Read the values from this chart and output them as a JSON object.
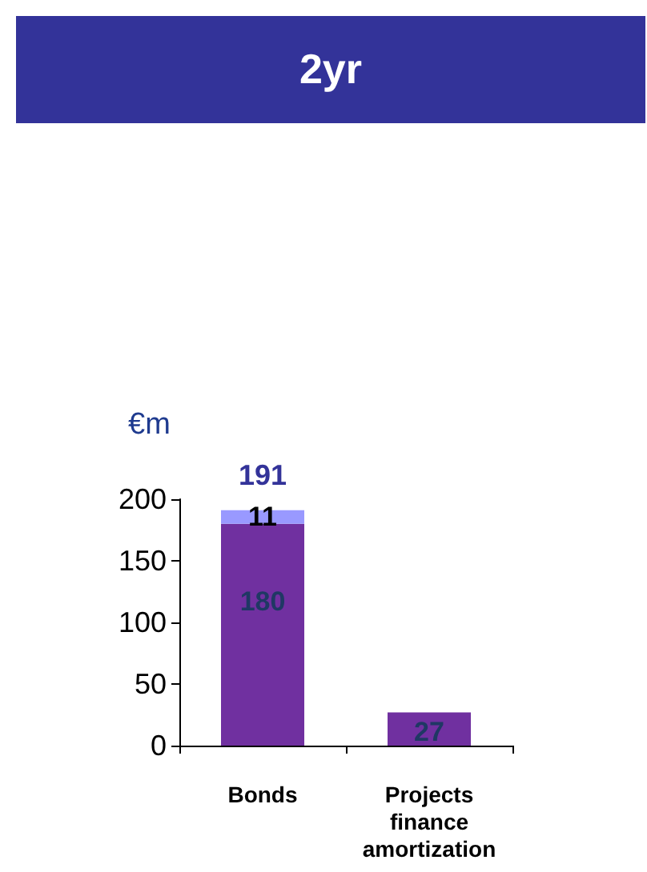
{
  "chart_data": {
    "type": "bar",
    "title": "2yr",
    "ylabel": "€m",
    "categories": [
      "Bonds",
      "Projects finance amortization"
    ],
    "stacked": true,
    "series": [
      {
        "color": "#7030a0",
        "values": [
          180,
          27
        ]
      },
      {
        "color": "#9999ff",
        "values": [
          11,
          null
        ]
      }
    ],
    "totals": [
      "191",
      null
    ],
    "data_labels": true,
    "ylim": [
      0,
      200
    ],
    "yticks": [
      0,
      50,
      100,
      150,
      200
    ],
    "grid": false
  }
}
